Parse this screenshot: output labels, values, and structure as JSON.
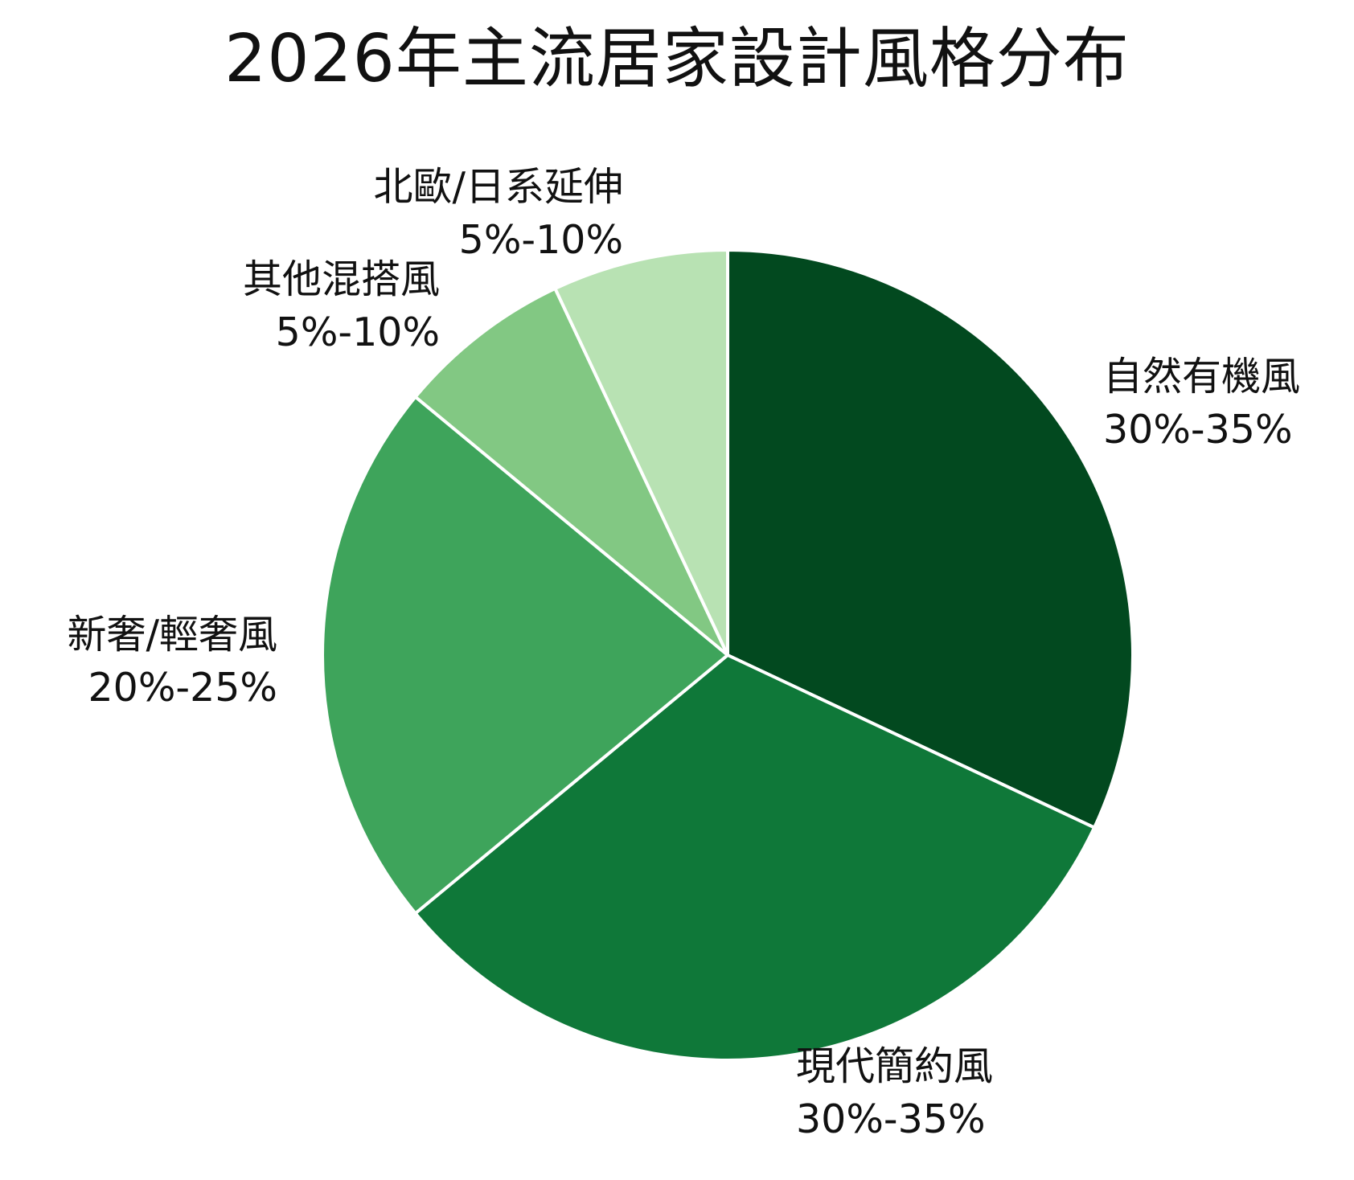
{
  "chart_data": {
    "type": "pie",
    "title": "2026年主流居家設計風格分布",
    "start_angle_deg": 0,
    "direction": "clockwise",
    "slices": [
      {
        "label": "自然有機風",
        "range_text": "30%-35%",
        "value": 32,
        "color": "#02491f"
      },
      {
        "label": "現代簡約風",
        "range_text": "30%-35%",
        "value": 32,
        "color": "#0f7839"
      },
      {
        "label": "新奢/輕奢風",
        "range_text": "20%-25%",
        "value": 22,
        "color": "#3ea45b"
      },
      {
        "label": "其他混搭風",
        "range_text": "5%-10%",
        "value": 7,
        "color": "#82c883"
      },
      {
        "label": "北歐/日系延伸",
        "range_text": "5%-10%",
        "value": 7,
        "color": "#b8e2b3"
      }
    ],
    "separator_color": "#ffffff"
  }
}
